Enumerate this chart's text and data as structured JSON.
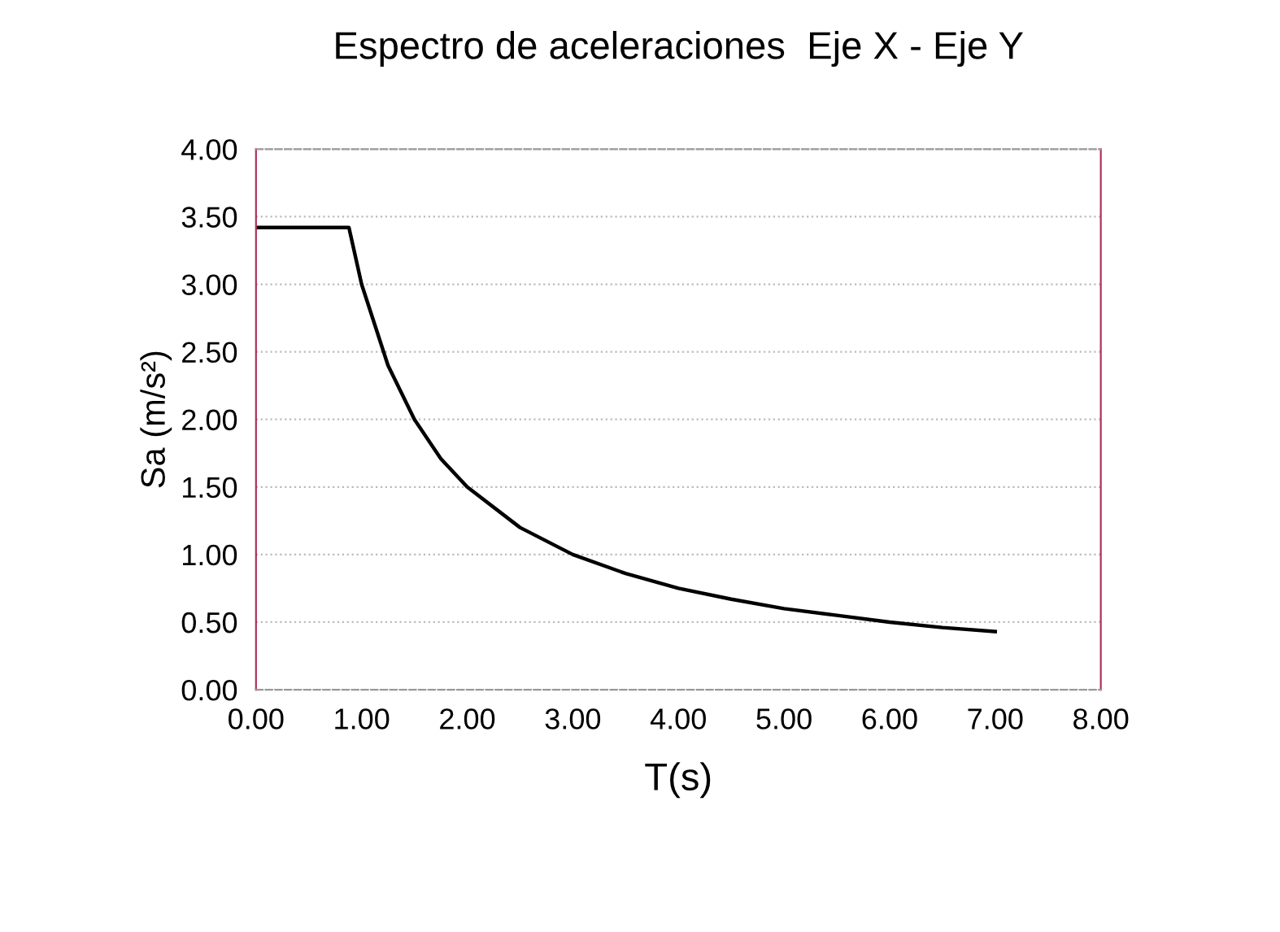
{
  "chart_data": {
    "type": "line",
    "title": "Espectro de aceleraciones  Eje X - Eje Y",
    "xlabel": "T(s)",
    "ylabel": "Sa (m/s²)",
    "x": [
      0,
      0.88,
      1.0,
      1.25,
      1.5,
      1.75,
      2.0,
      2.5,
      3.0,
      3.5,
      4.0,
      4.5,
      5.0,
      5.5,
      6.0,
      6.5,
      7.0
    ],
    "series": [
      {
        "color": "#000000",
        "values": [
          3.42,
          3.42,
          3.0,
          2.4,
          2.0,
          1.71,
          1.5,
          1.2,
          1.0,
          0.86,
          0.75,
          0.67,
          0.6,
          0.55,
          0.5,
          0.46,
          0.43
        ]
      }
    ],
    "xlim": [
      0,
      8
    ],
    "xticks": [
      {
        "value": 0,
        "label": "0.00"
      },
      {
        "value": 1,
        "label": "1.00"
      },
      {
        "value": 2,
        "label": "2.00"
      },
      {
        "value": 3,
        "label": "3.00"
      },
      {
        "value": 4,
        "label": "4.00"
      },
      {
        "value": 5,
        "label": "5.00"
      },
      {
        "value": 6,
        "label": "6.00"
      },
      {
        "value": 7,
        "label": "7.00"
      },
      {
        "value": 8,
        "label": "8.00"
      }
    ],
    "ylim": [
      0,
      4
    ],
    "yticks": [
      {
        "value": 0,
        "label": "0.00"
      },
      {
        "value": 0.5,
        "label": "0.50"
      },
      {
        "value": 1,
        "label": "1.00"
      },
      {
        "value": 1.5,
        "label": "1.50"
      },
      {
        "value": 2,
        "label": "2.00"
      },
      {
        "value": 2.5,
        "label": "2.50"
      },
      {
        "value": 3,
        "label": "3.00"
      },
      {
        "value": 3.5,
        "label": "3.50"
      },
      {
        "value": 4,
        "label": "4.00"
      }
    ],
    "grid": "y",
    "legend": false,
    "marker": "none",
    "line_style": "solid"
  }
}
